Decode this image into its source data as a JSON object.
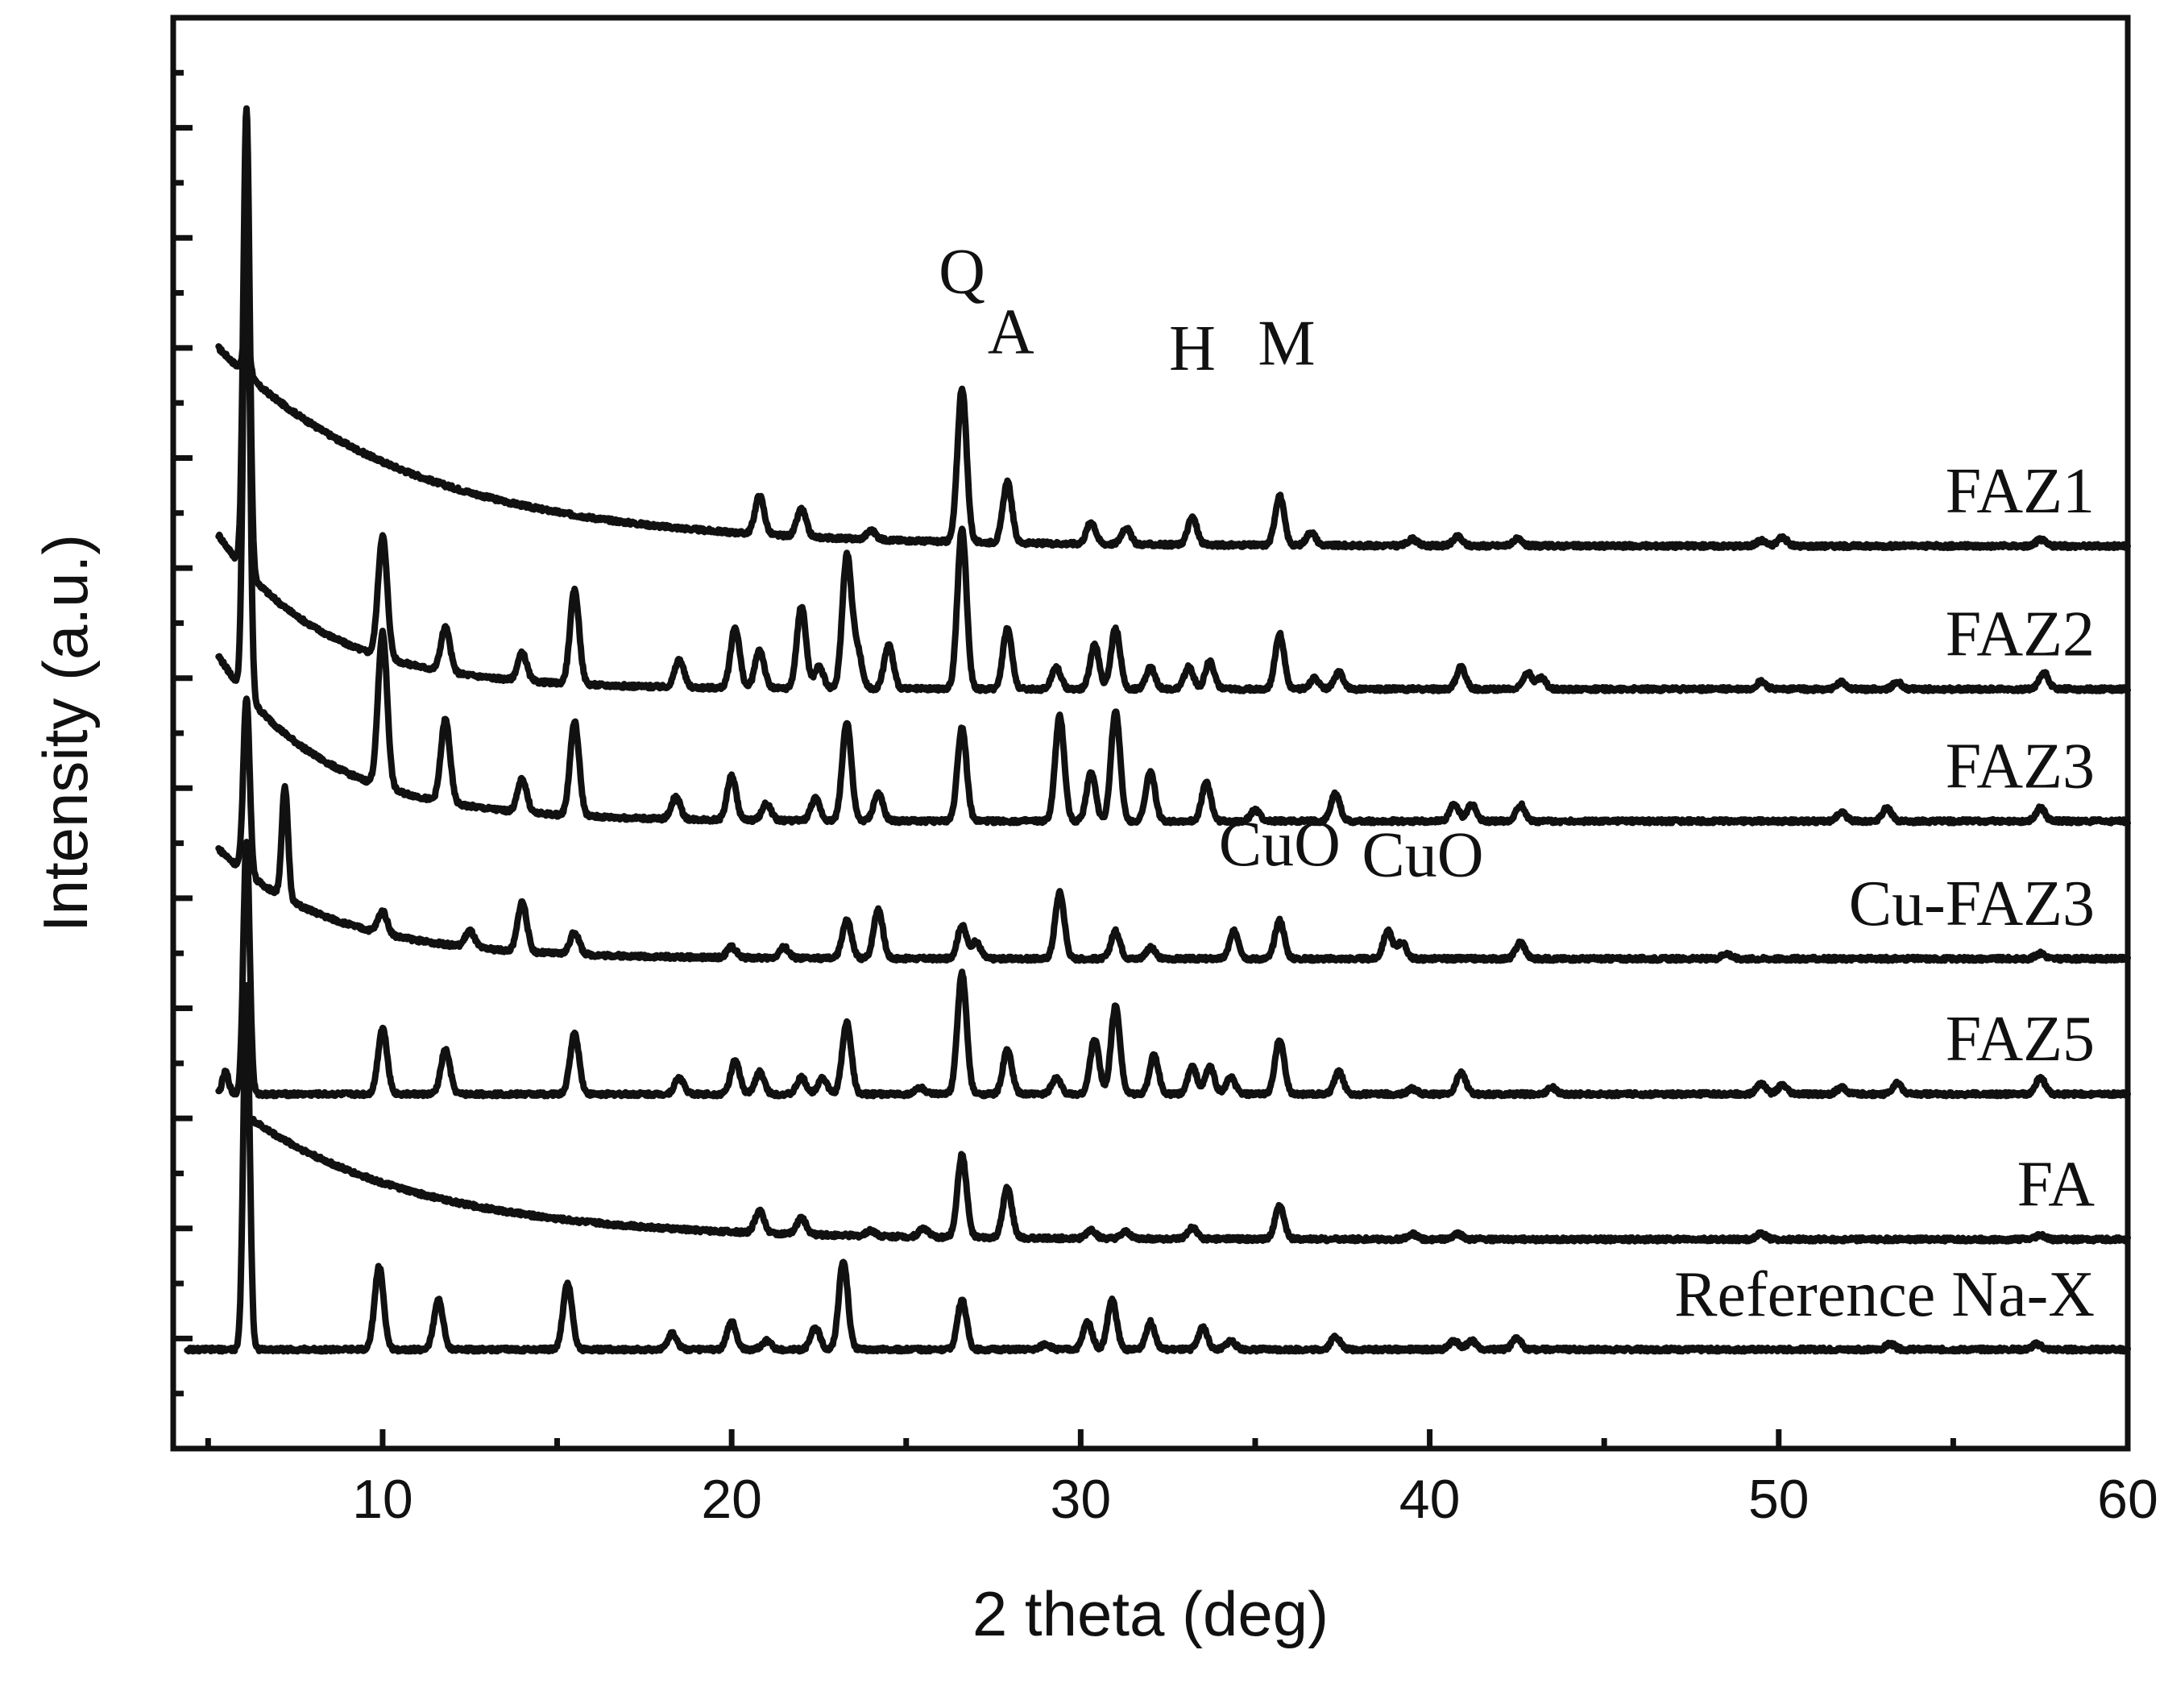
{
  "chart_data": {
    "type": "line",
    "title": "",
    "xlabel": "2 theta (deg)",
    "ylabel": "Intensity (a.u.)",
    "xlim": [
      4,
      60
    ],
    "ylim": [
      0,
      13
    ],
    "x_ticks": [
      10,
      20,
      30,
      40,
      50,
      60
    ],
    "y_tick_labels_shown": false,
    "grid": false,
    "legend": "labels placed at right end of each trace",
    "series": [
      {
        "name": "FAZ1",
        "offset": 8.0,
        "start": 5.3,
        "background": {
          "a": 0.2,
          "b": 1.8,
          "tau": 5.5
        },
        "peaks": [
          [
            6.1,
            0.4
          ],
          [
            20.8,
            0.35
          ],
          [
            22.0,
            0.25
          ],
          [
            24.0,
            0.08
          ],
          [
            26.6,
            1.4
          ],
          [
            27.9,
            0.55
          ],
          [
            30.3,
            0.2
          ],
          [
            31.3,
            0.15
          ],
          [
            33.2,
            0.25
          ],
          [
            35.7,
            0.45
          ],
          [
            36.6,
            0.12
          ],
          [
            39.5,
            0.06
          ],
          [
            40.8,
            0.08
          ],
          [
            42.5,
            0.06
          ],
          [
            49.5,
            0.05
          ],
          [
            50.1,
            0.08
          ],
          [
            57.5,
            0.06
          ]
        ]
      },
      {
        "name": "FAZ2",
        "offset": 6.8,
        "start": 5.3,
        "background": {
          "a": 0.1,
          "b": 1.4,
          "tau": 3.0
        },
        "peaks": [
          [
            6.1,
            4.2
          ],
          [
            10.0,
            1.1
          ],
          [
            11.8,
            0.4
          ],
          [
            14.0,
            0.25
          ],
          [
            15.5,
            0.85
          ],
          [
            18.5,
            0.25
          ],
          [
            20.1,
            0.55
          ],
          [
            20.8,
            0.35
          ],
          [
            22.0,
            0.75
          ],
          [
            22.5,
            0.2
          ],
          [
            23.3,
            1.2
          ],
          [
            23.6,
            0.35
          ],
          [
            24.5,
            0.4
          ],
          [
            26.6,
            1.45
          ],
          [
            27.9,
            0.55
          ],
          [
            29.3,
            0.2
          ],
          [
            30.4,
            0.4
          ],
          [
            31.0,
            0.55
          ],
          [
            32.0,
            0.2
          ],
          [
            33.1,
            0.2
          ],
          [
            33.7,
            0.25
          ],
          [
            35.7,
            0.5
          ],
          [
            36.7,
            0.1
          ],
          [
            37.4,
            0.15
          ],
          [
            40.9,
            0.2
          ],
          [
            42.8,
            0.15
          ],
          [
            43.2,
            0.1
          ],
          [
            49.5,
            0.07
          ],
          [
            51.8,
            0.06
          ],
          [
            53.4,
            0.06
          ],
          [
            57.6,
            0.15
          ]
        ]
      },
      {
        "name": "FAZ3",
        "offset": 5.6,
        "start": 5.3,
        "background": {
          "a": 0.1,
          "b": 1.5,
          "tau": 3.0
        },
        "peaks": [
          [
            6.1,
            4.7
          ],
          [
            10.0,
            1.4
          ],
          [
            11.8,
            0.75
          ],
          [
            14.0,
            0.3
          ],
          [
            15.5,
            0.85
          ],
          [
            18.4,
            0.2
          ],
          [
            20.0,
            0.4
          ],
          [
            21.0,
            0.15
          ],
          [
            22.4,
            0.2
          ],
          [
            23.3,
            0.9
          ],
          [
            24.2,
            0.25
          ],
          [
            26.6,
            0.85
          ],
          [
            29.4,
            0.95
          ],
          [
            30.3,
            0.45
          ],
          [
            31.0,
            1.0
          ],
          [
            32.0,
            0.45
          ],
          [
            33.6,
            0.35
          ],
          [
            35.0,
            0.1
          ],
          [
            37.3,
            0.25
          ],
          [
            40.7,
            0.15
          ],
          [
            41.2,
            0.15
          ],
          [
            42.6,
            0.15
          ],
          [
            51.8,
            0.08
          ],
          [
            53.1,
            0.12
          ],
          [
            57.5,
            0.12
          ]
        ]
      },
      {
        "name": "Cu-FAZ3",
        "offset": 4.35,
        "start": 5.3,
        "background": {
          "a": 0.1,
          "b": 1.0,
          "tau": 3.2
        },
        "peaks": [
          [
            6.1,
            1.6
          ],
          [
            7.2,
            1.0
          ],
          [
            10.0,
            0.2
          ],
          [
            12.5,
            0.15
          ],
          [
            14.0,
            0.45
          ],
          [
            15.5,
            0.2
          ],
          [
            20.0,
            0.1
          ],
          [
            21.5,
            0.1
          ],
          [
            23.3,
            0.35
          ],
          [
            24.2,
            0.45
          ],
          [
            26.6,
            0.3
          ],
          [
            27.0,
            0.15
          ],
          [
            29.4,
            0.6
          ],
          [
            31.0,
            0.25
          ],
          [
            32.0,
            0.1
          ],
          [
            34.4,
            0.25
          ],
          [
            35.7,
            0.35
          ],
          [
            38.8,
            0.25
          ],
          [
            39.2,
            0.15
          ],
          [
            42.6,
            0.15
          ],
          [
            48.5,
            0.05
          ],
          [
            57.5,
            0.05
          ]
        ]
      },
      {
        "name": "FAZ5",
        "offset": 3.1,
        "start": 5.3,
        "background": {
          "a": 0.12,
          "b": 0.0,
          "tau": 3.0
        },
        "peaks": [
          [
            5.5,
            0.2
          ],
          [
            6.1,
            2.3
          ],
          [
            10.0,
            0.6
          ],
          [
            11.8,
            0.4
          ],
          [
            15.5,
            0.55
          ],
          [
            18.5,
            0.15
          ],
          [
            20.1,
            0.3
          ],
          [
            20.8,
            0.2
          ],
          [
            22.0,
            0.15
          ],
          [
            22.6,
            0.15
          ],
          [
            23.3,
            0.65
          ],
          [
            25.4,
            0.06
          ],
          [
            26.6,
            1.1
          ],
          [
            27.9,
            0.4
          ],
          [
            29.3,
            0.15
          ],
          [
            30.4,
            0.5
          ],
          [
            31.0,
            0.8
          ],
          [
            32.1,
            0.35
          ],
          [
            33.2,
            0.25
          ],
          [
            33.7,
            0.25
          ],
          [
            34.3,
            0.15
          ],
          [
            35.7,
            0.5
          ],
          [
            37.4,
            0.2
          ],
          [
            39.5,
            0.05
          ],
          [
            40.9,
            0.2
          ],
          [
            43.5,
            0.06
          ],
          [
            49.5,
            0.1
          ],
          [
            50.1,
            0.08
          ],
          [
            51.8,
            0.06
          ],
          [
            53.4,
            0.1
          ],
          [
            57.5,
            0.15
          ]
        ]
      },
      {
        "name": "FA",
        "offset": 1.85,
        "start": 6.2,
        "background": {
          "a": 0.05,
          "b": 1.1,
          "tau": 5.0
        },
        "peaks": [
          [
            20.8,
            0.2
          ],
          [
            22.0,
            0.15
          ],
          [
            24.0,
            0.05
          ],
          [
            25.5,
            0.08
          ],
          [
            26.6,
            0.75
          ],
          [
            27.9,
            0.45
          ],
          [
            30.3,
            0.08
          ],
          [
            31.3,
            0.06
          ],
          [
            33.2,
            0.1
          ],
          [
            35.7,
            0.3
          ],
          [
            39.5,
            0.05
          ],
          [
            40.8,
            0.05
          ],
          [
            49.5,
            0.05
          ],
          [
            57.5,
            0.04
          ]
        ]
      },
      {
        "name": "Reference Na-X",
        "offset": 0.9,
        "start": 4.4,
        "background": {
          "a": 0.0,
          "b": 0.0,
          "tau": 3.0
        },
        "peaks": [
          [
            6.1,
            3.3
          ],
          [
            9.9,
            0.75
          ],
          [
            11.6,
            0.45
          ],
          [
            15.3,
            0.6
          ],
          [
            18.3,
            0.15
          ],
          [
            20.0,
            0.25
          ],
          [
            21.0,
            0.08
          ],
          [
            22.4,
            0.2
          ],
          [
            23.2,
            0.8
          ],
          [
            26.6,
            0.45
          ],
          [
            29.0,
            0.05
          ],
          [
            30.2,
            0.25
          ],
          [
            30.9,
            0.45
          ],
          [
            32.0,
            0.25
          ],
          [
            33.5,
            0.2
          ],
          [
            34.3,
            0.08
          ],
          [
            37.3,
            0.12
          ],
          [
            40.7,
            0.08
          ],
          [
            41.2,
            0.08
          ],
          [
            42.5,
            0.1
          ],
          [
            53.2,
            0.05
          ],
          [
            57.4,
            0.05
          ]
        ]
      }
    ],
    "annotations": [
      {
        "text": "Q",
        "x": 26.6,
        "y": 10.5
      },
      {
        "text": "A",
        "x": 28.0,
        "y": 9.95
      },
      {
        "text": "H",
        "x": 33.2,
        "y": 9.8
      },
      {
        "text": "M",
        "x": 35.9,
        "y": 9.85
      },
      {
        "text": "CuO",
        "x": 35.7,
        "y": 5.3
      },
      {
        "text": "CuO",
        "x": 39.8,
        "y": 5.2
      }
    ]
  }
}
